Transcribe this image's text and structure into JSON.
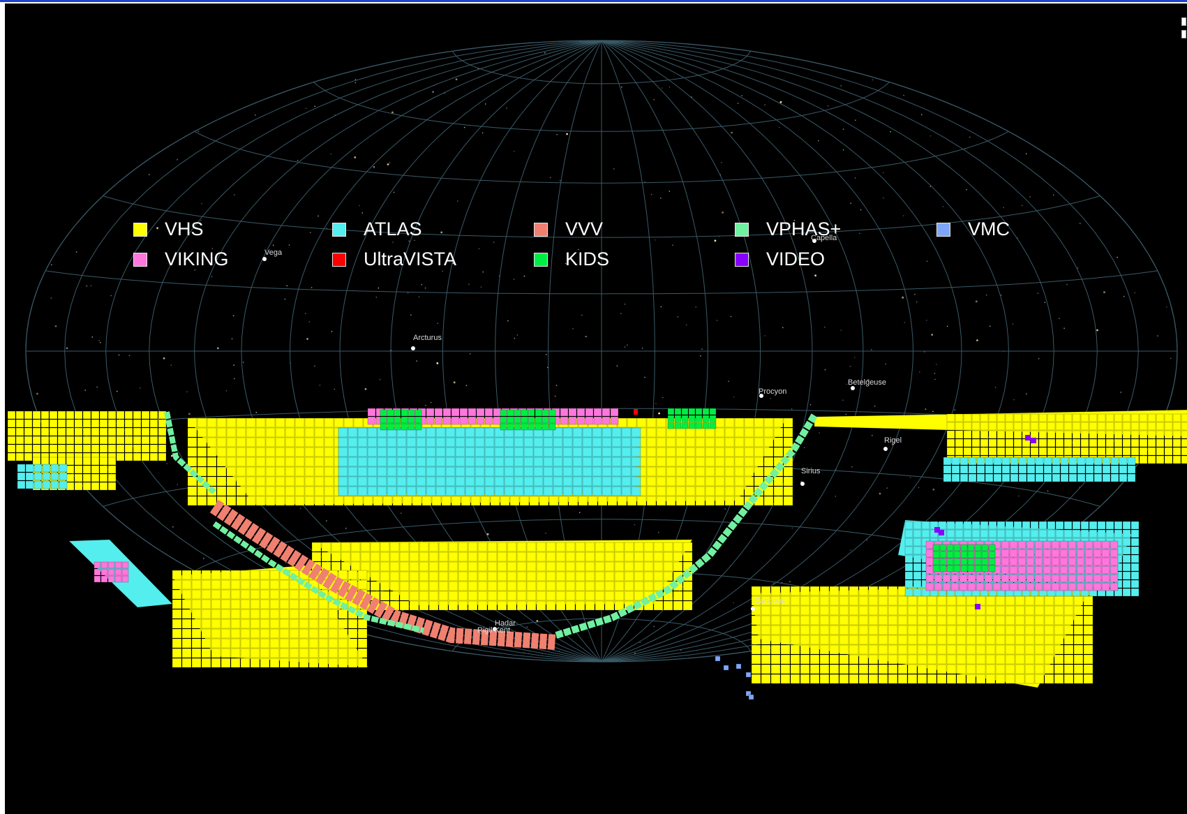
{
  "legend": {
    "items": [
      {
        "label": "VHS",
        "color": "#ffff00"
      },
      {
        "label": "ATLAS",
        "color": "#55eeee"
      },
      {
        "label": "VVV",
        "color": "#f08070"
      },
      {
        "label": "VPHAS+",
        "color": "#70f0a0"
      },
      {
        "label": "VMC",
        "color": "#7ea6f8"
      },
      {
        "label": "VIKING",
        "color": "#ff77dd"
      },
      {
        "label": "UltraVISTA",
        "color": "#ff0000"
      },
      {
        "label": "KIDS",
        "color": "#00ee44"
      },
      {
        "label": "VIDEO",
        "color": "#8800ff"
      }
    ]
  },
  "stars": {
    "vega": "Vega",
    "capella": "Capella",
    "arcturus": "Arcturus",
    "procyon": "Procyon",
    "betelgeuse": "Betelgeuse",
    "rigel": "Rigel",
    "sirius": "Sirius",
    "canopus": "Canopus",
    "hadar": "Hadar",
    "rigil_kent": "Rigil Kent"
  },
  "colors": {
    "background": "#000000",
    "grid": "#3a5a68"
  }
}
